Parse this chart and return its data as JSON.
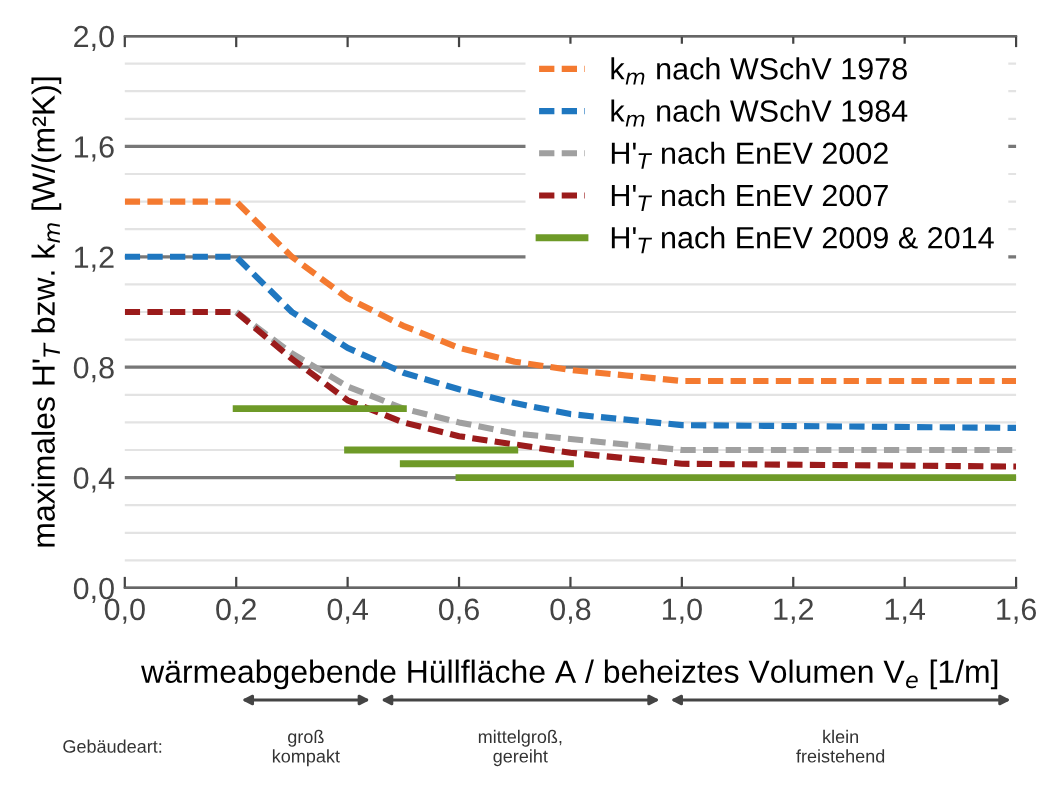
{
  "chart_data": {
    "type": "line",
    "xlabel": "wärmeabgebende Hüllfläche A / beheiztes Volumen V$_{e}$ [1/m]",
    "ylabel": "maximales H'$_{T}$ bzw. k$_{m}$ [W/(m²K)]",
    "xlim": [
      0,
      1.6
    ],
    "ylim": [
      0,
      2.0
    ],
    "xticks": [
      {
        "value": 0,
        "label": "0,0"
      },
      {
        "value": 0.2,
        "label": "0,2"
      },
      {
        "value": 0.4,
        "label": "0,4"
      },
      {
        "value": 0.6,
        "label": "0,6"
      },
      {
        "value": 0.8,
        "label": "0,8"
      },
      {
        "value": 1.0,
        "label": "1,0"
      },
      {
        "value": 1.2,
        "label": "1,2"
      },
      {
        "value": 1.4,
        "label": "1,4"
      },
      {
        "value": 1.6,
        "label": "1,6"
      }
    ],
    "yticks": [
      {
        "value": 0,
        "label": "0,0"
      },
      {
        "value": 0.1,
        "label": null
      },
      {
        "value": 0.2,
        "label": null
      },
      {
        "value": 0.3,
        "label": null
      },
      {
        "value": 0.4,
        "label": "0,4"
      },
      {
        "value": 0.5,
        "label": null
      },
      {
        "value": 0.6,
        "label": null
      },
      {
        "value": 0.7,
        "label": null
      },
      {
        "value": 0.8,
        "label": "0,8"
      },
      {
        "value": 0.9,
        "label": null
      },
      {
        "value": 1.0,
        "label": null
      },
      {
        "value": 1.1,
        "label": null
      },
      {
        "value": 1.2,
        "label": "1,2"
      },
      {
        "value": 1.3,
        "label": null
      },
      {
        "value": 1.4,
        "label": null
      },
      {
        "value": 1.5,
        "label": null
      },
      {
        "value": 1.6,
        "label": "1,6"
      },
      {
        "value": 1.7,
        "label": null
      },
      {
        "value": 1.8,
        "label": null
      },
      {
        "value": 1.9,
        "label": null
      },
      {
        "value": 2.0,
        "label": "2,0"
      }
    ],
    "grid": "y",
    "legend": "top right",
    "marker": "none",
    "series": [
      {
        "name": "k$_{m}$ nach WSchV 1978",
        "color": "#f47a30",
        "line_style": "dashed",
        "x": [
          0,
          0.2,
          0.3,
          0.4,
          0.5,
          0.6,
          0.7,
          0.8,
          0.9,
          1.0,
          1.6
        ],
        "values": [
          1.4,
          1.4,
          1.2,
          1.05,
          0.95,
          0.87,
          0.82,
          0.79,
          0.77,
          0.75,
          0.75
        ]
      },
      {
        "name": "k$_{m}$ nach WSchV 1984",
        "color": "#1f77c0",
        "line_style": "dashed",
        "x": [
          0,
          0.2,
          0.3,
          0.4,
          0.5,
          0.6,
          0.7,
          0.8,
          0.9,
          1.0,
          1.6
        ],
        "values": [
          1.2,
          1.2,
          1.0,
          0.87,
          0.78,
          0.72,
          0.67,
          0.63,
          0.61,
          0.59,
          0.58
        ]
      },
      {
        "name": "H'$_{T}$ nach EnEV 2002",
        "color": "#a0a0a0",
        "line_style": "dashed",
        "x": [
          0.2,
          0.3,
          0.4,
          0.5,
          0.6,
          0.7,
          0.8,
          0.9,
          1.0,
          1.6
        ],
        "values": [
          1.0,
          0.85,
          0.73,
          0.65,
          0.6,
          0.56,
          0.54,
          0.52,
          0.5,
          0.5
        ]
      },
      {
        "name": "H'$_{T}$ nach EnEV 2007",
        "color": "#9b1b1b",
        "line_style": "dashed",
        "x": [
          0,
          0.2,
          0.3,
          0.4,
          0.5,
          0.6,
          0.7,
          0.8,
          0.9,
          1.0,
          1.6
        ],
        "values": [
          1.0,
          1.0,
          0.83,
          0.68,
          0.6,
          0.55,
          0.52,
          0.49,
          0.47,
          0.45,
          0.44
        ]
      },
      {
        "name": "H'$_{T}$ nach EnEV 2009 & 2014",
        "color": "#6e9a28",
        "line_style": "solid",
        "x": [
          0.2,
          0.5,
          null,
          0.4,
          0.7,
          null,
          0.5,
          0.8,
          null,
          0.6,
          1.6
        ],
        "values": [
          0.65,
          0.65,
          null,
          0.5,
          0.5,
          null,
          0.45,
          0.45,
          null,
          0.4,
          0.4
        ]
      }
    ],
    "annotations": [
      "Gebäudeart:",
      "groß\nkompakt",
      "mittelgroß,\ngereiht",
      "klein\nfreistehend"
    ]
  }
}
